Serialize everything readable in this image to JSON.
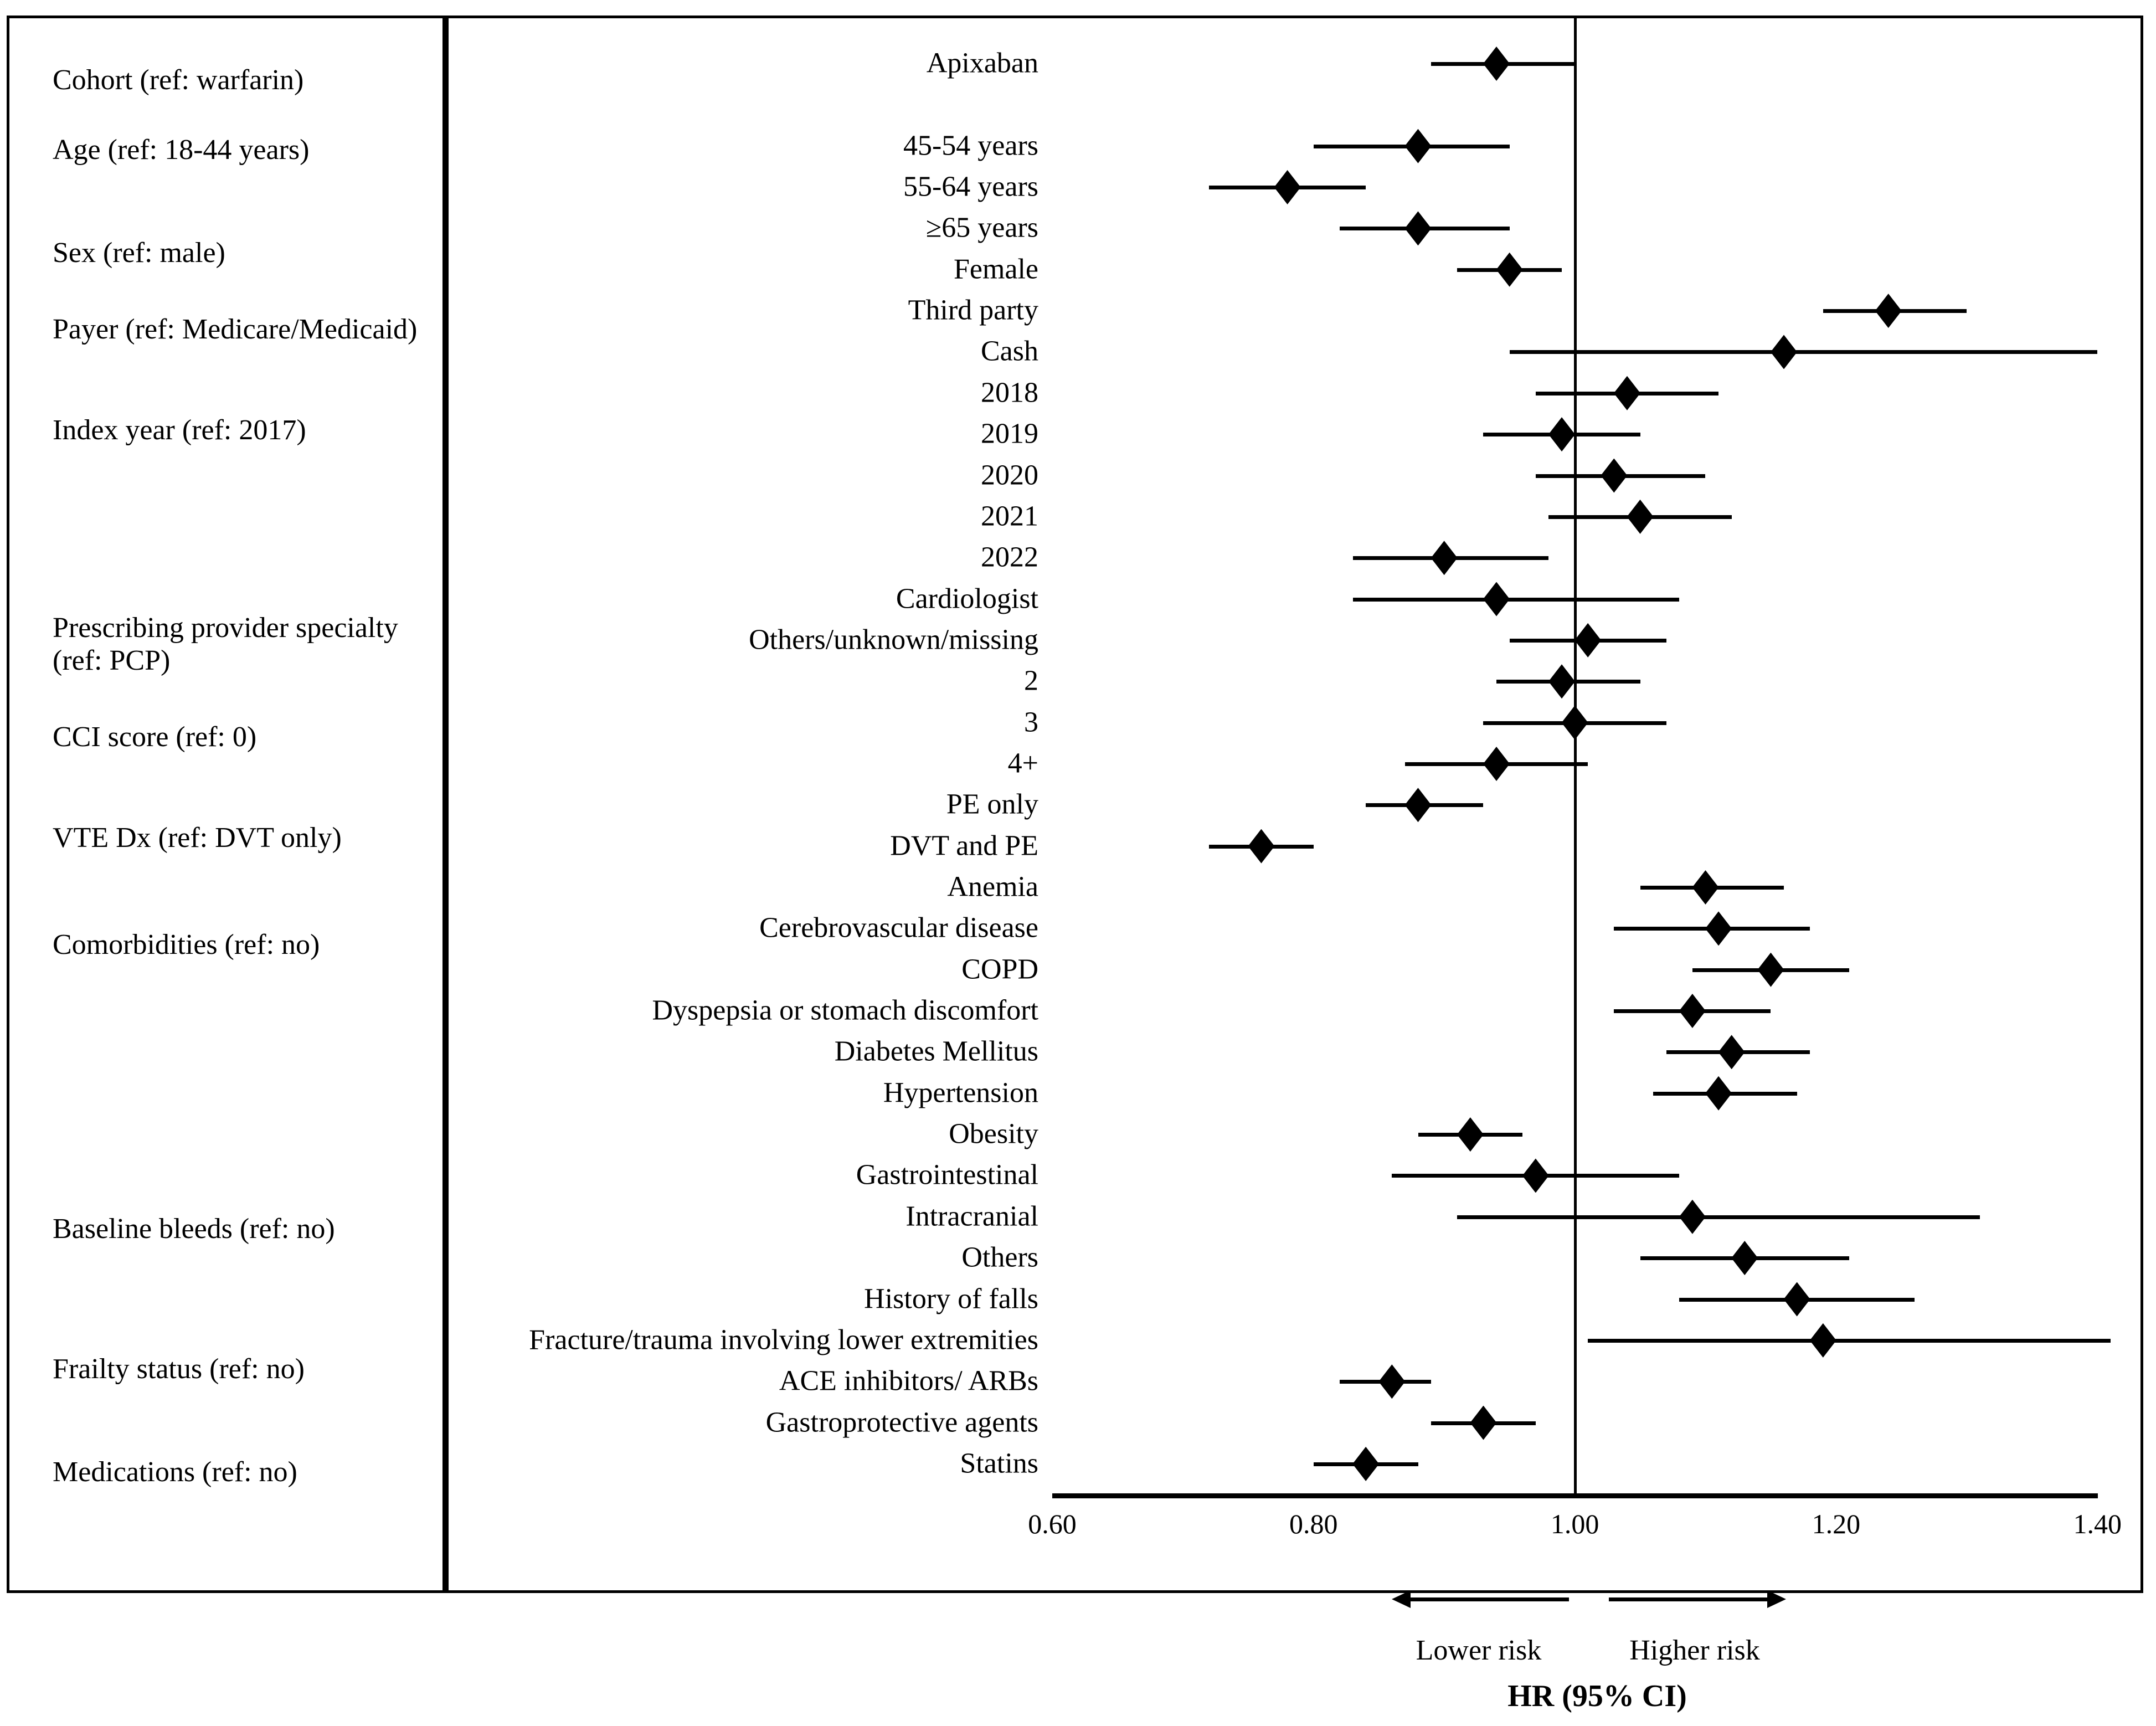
{
  "figure": {
    "x_axis": {
      "tick_labels": [
        "0.60",
        "0.80",
        "1.00",
        "1.20",
        "1.40"
      ],
      "tick_values": [
        0.6,
        0.8,
        1.0,
        1.2,
        1.4
      ],
      "min": 0.6,
      "max": 1.4,
      "reference_line": 1.0
    },
    "footer": {
      "lower_risk_label": "Lower risk",
      "higher_risk_label": "Higher risk",
      "axis_title": "HR (95% CI)"
    }
  },
  "chart_data": {
    "type": "scatter",
    "subtype": "forest-plot",
    "title": "",
    "xlabel": "HR (95% CI)",
    "ylabel": "",
    "xlim": [
      0.6,
      1.4
    ],
    "x_ticks": [
      0.6,
      0.8,
      1.0,
      1.2,
      1.4
    ],
    "reference_line": 1.0,
    "grid": false,
    "legend": [
      "Lower risk",
      "Higher risk"
    ],
    "group_labels": [
      {
        "label": "Cohort (ref: warfarin)",
        "slot": 0.4
      },
      {
        "label": "Age (ref: 18-44 years)",
        "slot": 2.1
      },
      {
        "label": "Sex (ref: male)",
        "slot": 4.6
      },
      {
        "label": "Payer (ref: Medicare/Medicaid)",
        "slot": 6.45
      },
      {
        "label": "Index year (ref: 2017)",
        "slot": 8.9
      },
      {
        "label": "Prescribing provider specialty (ref: PCP)",
        "slot": 14.1
      },
      {
        "label": "CCI score (ref: 0)",
        "slot": 16.35
      },
      {
        "label": "VTE Dx (ref: DVT only)",
        "slot": 18.8
      },
      {
        "label": "Comorbidities (ref: no)",
        "slot": 21.4
      },
      {
        "label": "Baseline bleeds (ref: no)",
        "slot": 28.3
      },
      {
        "label": "Frailty status (ref: no)",
        "slot": 31.7
      },
      {
        "label": "Medications (ref: no)",
        "slot": 34.2
      }
    ],
    "points": [
      {
        "group": "Cohort (ref: warfarin)",
        "label": "Apixaban",
        "slot": 0,
        "hr": 0.94,
        "ci_low": 0.89,
        "ci_high": 1.0
      },
      {
        "group": "Age (ref: 18-44 years)",
        "label": "45-54 years",
        "slot": 2,
        "hr": 0.88,
        "ci_low": 0.8,
        "ci_high": 0.95
      },
      {
        "group": "Age (ref: 18-44 years)",
        "label": "55-64 years",
        "slot": 3,
        "hr": 0.78,
        "ci_low": 0.72,
        "ci_high": 0.84
      },
      {
        "group": "Age (ref: 18-44 years)",
        "label": "≥65 years",
        "slot": 4,
        "hr": 0.88,
        "ci_low": 0.82,
        "ci_high": 0.95
      },
      {
        "group": "Sex (ref: male)",
        "label": "Female",
        "slot": 5,
        "hr": 0.95,
        "ci_low": 0.91,
        "ci_high": 0.99
      },
      {
        "group": "Payer (ref: Medicare/Medicaid)",
        "label": "Third party",
        "slot": 6,
        "hr": 1.24,
        "ci_low": 1.19,
        "ci_high": 1.3
      },
      {
        "group": "Payer (ref: Medicare/Medicaid)",
        "label": "Cash",
        "slot": 7,
        "hr": 1.16,
        "ci_low": 0.95,
        "ci_high": 1.4
      },
      {
        "group": "Index year (ref: 2017)",
        "label": "2018",
        "slot": 8,
        "hr": 1.04,
        "ci_low": 0.97,
        "ci_high": 1.11
      },
      {
        "group": "Index year (ref: 2017)",
        "label": "2019",
        "slot": 9,
        "hr": 0.99,
        "ci_low": 0.93,
        "ci_high": 1.05
      },
      {
        "group": "Index year (ref: 2017)",
        "label": "2020",
        "slot": 10,
        "hr": 1.03,
        "ci_low": 0.97,
        "ci_high": 1.1
      },
      {
        "group": "Index year (ref: 2017)",
        "label": "2021",
        "slot": 11,
        "hr": 1.05,
        "ci_low": 0.98,
        "ci_high": 1.12
      },
      {
        "group": "Index year (ref: 2017)",
        "label": "2022",
        "slot": 12,
        "hr": 0.9,
        "ci_low": 0.83,
        "ci_high": 0.98
      },
      {
        "group": "Prescribing provider specialty (ref: PCP)",
        "label": "Cardiologist",
        "slot": 13,
        "hr": 0.94,
        "ci_low": 0.83,
        "ci_high": 1.08
      },
      {
        "group": "Prescribing provider specialty (ref: PCP)",
        "label": "Others/unknown/missing",
        "slot": 14,
        "hr": 1.01,
        "ci_low": 0.95,
        "ci_high": 1.07
      },
      {
        "group": "CCI score (ref: 0)",
        "label": "2",
        "slot": 15,
        "hr": 0.99,
        "ci_low": 0.94,
        "ci_high": 1.05
      },
      {
        "group": "CCI score (ref: 0)",
        "label": "3",
        "slot": 16,
        "hr": 1.0,
        "ci_low": 0.93,
        "ci_high": 1.07
      },
      {
        "group": "CCI score (ref: 0)",
        "label": "4+",
        "slot": 17,
        "hr": 0.94,
        "ci_low": 0.87,
        "ci_high": 1.01
      },
      {
        "group": "VTE Dx (ref: DVT only)",
        "label": "PE only",
        "slot": 18,
        "hr": 0.88,
        "ci_low": 0.84,
        "ci_high": 0.93
      },
      {
        "group": "VTE Dx (ref: DVT only)",
        "label": "DVT and PE",
        "slot": 19,
        "hr": 0.76,
        "ci_low": 0.72,
        "ci_high": 0.8
      },
      {
        "group": "Comorbidities (ref: no)",
        "label": "Anemia",
        "slot": 20,
        "hr": 1.1,
        "ci_low": 1.05,
        "ci_high": 1.16
      },
      {
        "group": "Comorbidities (ref: no)",
        "label": "Cerebrovascular disease",
        "slot": 21,
        "hr": 1.11,
        "ci_low": 1.03,
        "ci_high": 1.18
      },
      {
        "group": "Comorbidities (ref: no)",
        "label": "COPD",
        "slot": 22,
        "hr": 1.15,
        "ci_low": 1.09,
        "ci_high": 1.21
      },
      {
        "group": "Comorbidities (ref: no)",
        "label": "Dyspepsia or stomach discomfort",
        "slot": 23,
        "hr": 1.09,
        "ci_low": 1.03,
        "ci_high": 1.15
      },
      {
        "group": "Comorbidities (ref: no)",
        "label": "Diabetes Mellitus",
        "slot": 24,
        "hr": 1.12,
        "ci_low": 1.07,
        "ci_high": 1.18
      },
      {
        "group": "Comorbidities (ref: no)",
        "label": "Hypertension",
        "slot": 25,
        "hr": 1.11,
        "ci_low": 1.06,
        "ci_high": 1.17
      },
      {
        "group": "Comorbidities (ref: no)",
        "label": "Obesity",
        "slot": 26,
        "hr": 0.92,
        "ci_low": 0.88,
        "ci_high": 0.96
      },
      {
        "group": "Baseline bleeds (ref: no)",
        "label": "Gastrointestinal",
        "slot": 27,
        "hr": 0.97,
        "ci_low": 0.86,
        "ci_high": 1.08
      },
      {
        "group": "Baseline bleeds (ref: no)",
        "label": "Intracranial",
        "slot": 28,
        "hr": 1.09,
        "ci_low": 0.91,
        "ci_high": 1.31
      },
      {
        "group": "Baseline bleeds (ref: no)",
        "label": "Others",
        "slot": 29,
        "hr": 1.13,
        "ci_low": 1.05,
        "ci_high": 1.21
      },
      {
        "group": "Frailty status (ref: no)",
        "label": "History of falls",
        "slot": 30,
        "hr": 1.17,
        "ci_low": 1.08,
        "ci_high": 1.26
      },
      {
        "group": "Frailty status (ref: no)",
        "label": "Fracture/trauma involving lower extremities",
        "slot": 31,
        "hr": 1.19,
        "ci_low": 1.01,
        "ci_high": 1.41
      },
      {
        "group": "Medications (ref: no)",
        "label": "ACE inhibitors/ ARBs",
        "slot": 32,
        "hr": 0.86,
        "ci_low": 0.82,
        "ci_high": 0.89
      },
      {
        "group": "Medications (ref: no)",
        "label": "Gastroprotective agents",
        "slot": 33,
        "hr": 0.93,
        "ci_low": 0.89,
        "ci_high": 0.97
      },
      {
        "group": "Medications (ref: no)",
        "label": "Statins",
        "slot": 34,
        "hr": 0.84,
        "ci_low": 0.8,
        "ci_high": 0.88
      }
    ]
  }
}
